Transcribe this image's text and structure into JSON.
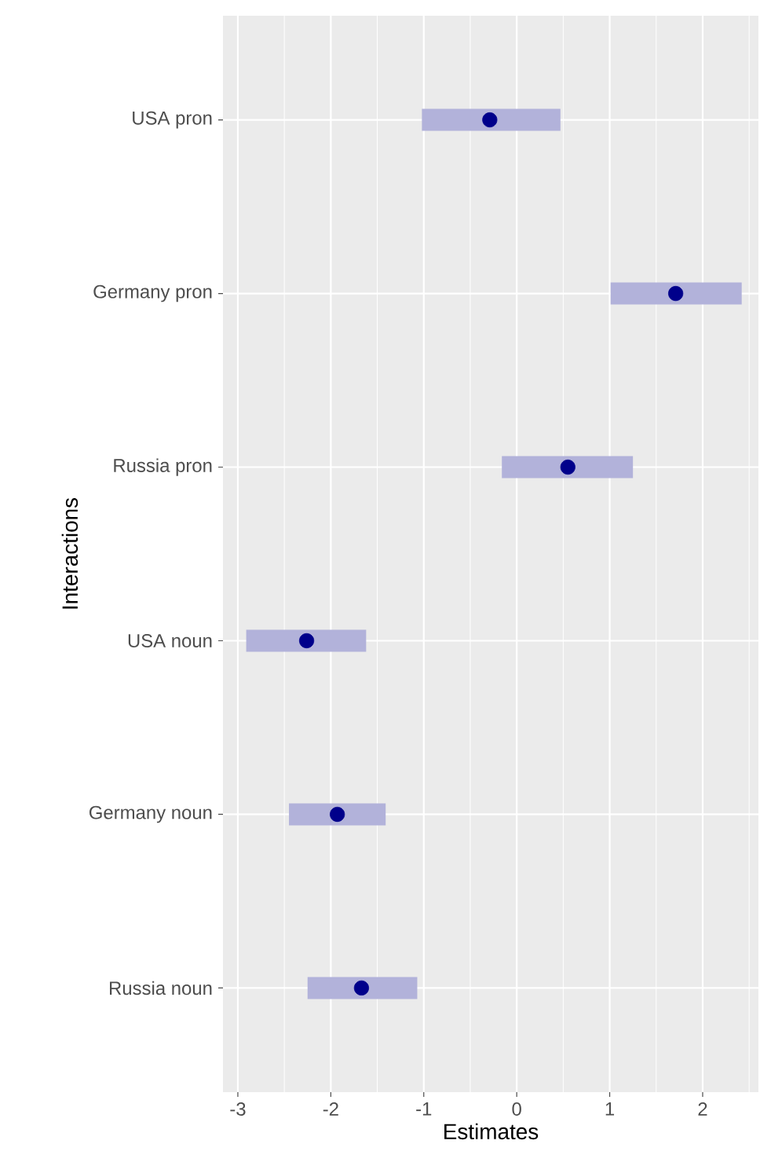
{
  "chart_data": {
    "type": "scatter",
    "orientation": "horizontal",
    "xlabel": "Estimates",
    "ylabel": "Interactions",
    "categories": [
      "USA pron",
      "Germany pron",
      "Russia pron",
      "USA noun",
      "Germany noun",
      "Russia noun"
    ],
    "color": "#00008b",
    "values": [
      -0.29,
      1.71,
      0.55,
      -2.26,
      -1.93,
      -1.67
    ],
    "errors": [
      [
        -1.02,
        0.47
      ],
      [
        1.01,
        2.42
      ],
      [
        -0.16,
        1.25
      ],
      [
        -2.91,
        -1.62
      ],
      [
        -2.45,
        -1.41
      ],
      [
        -2.25,
        -1.07
      ]
    ],
    "xlim": [
      -3.16,
      2.6
    ],
    "xticks": [
      -3,
      -2,
      -1,
      0,
      1,
      2
    ],
    "grid": true,
    "marker": "circle"
  }
}
